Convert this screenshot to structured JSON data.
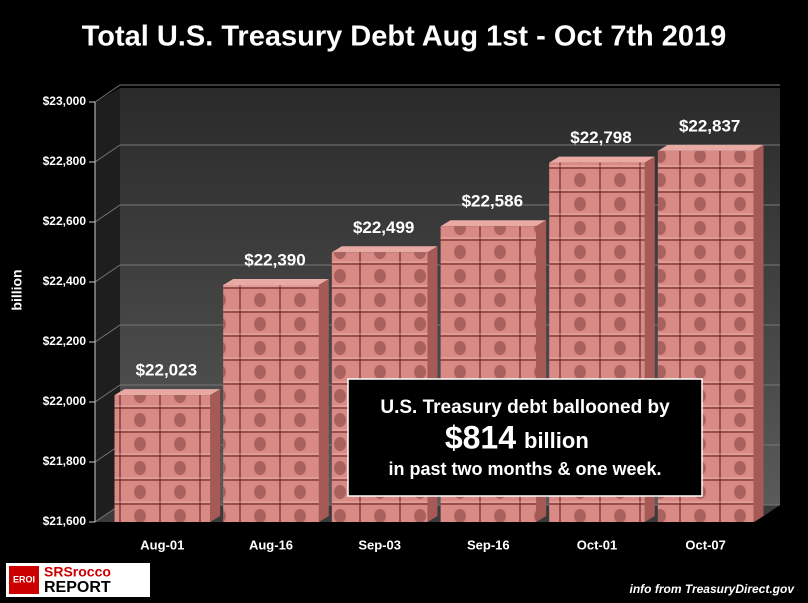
{
  "chart_data": {
    "type": "bar",
    "title": "Total U.S. Treasury Debt Aug 1st - Oct 7th 2019",
    "y_label": "billion",
    "categories": [
      "Aug-01",
      "Aug-16",
      "Sep-03",
      "Sep-16",
      "Oct-01",
      "Oct-07"
    ],
    "values": [
      22023,
      22390,
      22499,
      22586,
      22798,
      22837
    ],
    "value_labels": [
      "$22,023",
      "$22,390",
      "$22,499",
      "$22,586",
      "$22,798",
      "$22,837"
    ],
    "color": "#d98a84",
    "ylim": [
      21600,
      23000
    ],
    "yticks": [
      {
        "value": 21600,
        "label": "$21,600"
      },
      {
        "value": 21800,
        "label": "$21,800"
      },
      {
        "value": 22000,
        "label": "$22,000"
      },
      {
        "value": 22200,
        "label": "$22,200"
      },
      {
        "value": 22400,
        "label": "$22,400"
      },
      {
        "value": 22600,
        "label": "$22,600"
      },
      {
        "value": 22800,
        "label": "$22,800"
      },
      {
        "value": 23000,
        "label": "$23,000"
      }
    ],
    "annotation": {
      "line1": "U.S. Treasury debt ballooned by",
      "amount": "$814",
      "unit": "billion",
      "line2": "in past two months & one week."
    },
    "source": "info from TreasuryDirect.gov",
    "logo": {
      "badge": "EROI",
      "name": "SRSrocco",
      "sub": "REPORT"
    }
  }
}
